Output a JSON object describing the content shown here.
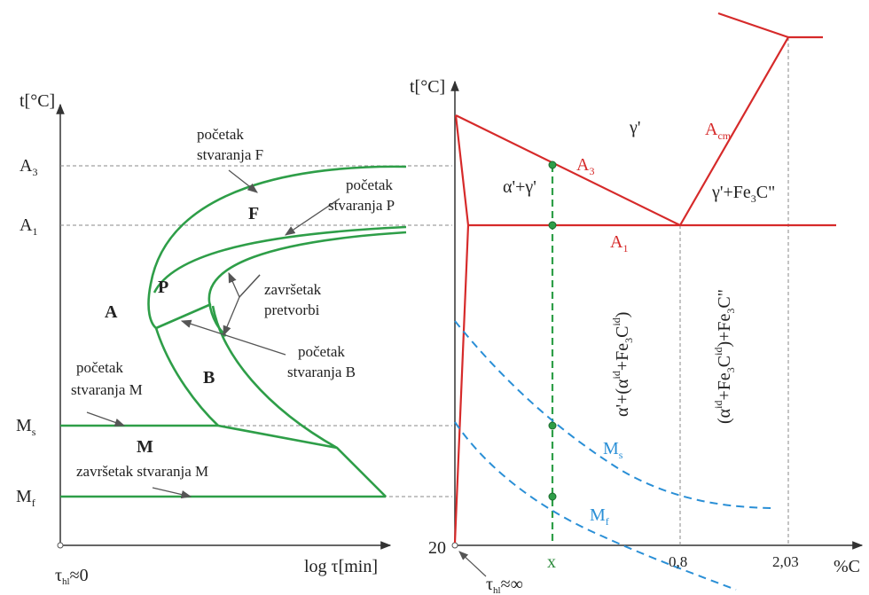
{
  "left": {
    "y_axis": "t[°C]",
    "x_axis": "log τ[min]",
    "origin": "τ",
    "origin_sub": "hl",
    "origin_suffix": "≈0",
    "ticks": {
      "a3": "A",
      "a3_sub": "3",
      "a1": "A",
      "a1_sub": "1",
      "ms": "M",
      "ms_sub": "s",
      "mf": "M",
      "mf_sub": "f"
    },
    "regions": {
      "A": "A",
      "F": "F",
      "P": "P",
      "B": "B",
      "M": "M"
    },
    "labels": {
      "pocetak_f_1": "početak",
      "pocetak_f_2": "stvaranja F",
      "pocetak_p_1": "početak",
      "pocetak_p_2": "stvaranja P",
      "zavrsetak_1": "završetak",
      "zavrsetak_2": "pretvorbi",
      "pocetak_b_1": "početak",
      "pocetak_b_2": "stvaranja B",
      "pocetak_m_1": "početak",
      "pocetak_m_2": "stvaranja M",
      "zavrsetak_m": "završetak stvaranja M"
    }
  },
  "right": {
    "y_axis": "t[°C]",
    "x_axis": "%C",
    "origin_value": "20",
    "origin": "τ",
    "origin_sub": "hl",
    "origin_suffix": "≈∞",
    "x_ticks": {
      "x": "x",
      "eutectoid": "0,8",
      "max": "2,03"
    },
    "labels": {
      "gamma": "γ'",
      "acm": "A",
      "acm_sub": "cm",
      "a3": "A",
      "a3_sub": "3",
      "a1": "A",
      "a1_sub": "1",
      "alpha_gamma": "α'+γ'",
      "gamma_fe3c_1": "γ'+Fe",
      "gamma_fe3c_sub": "3",
      "gamma_fe3c_2": "C\"",
      "ms": "M",
      "ms_sub": "s",
      "mf": "M",
      "mf_sub": "f",
      "vert_left": "α'+(α +Fe C )",
      "vert_left_parts": [
        "α'+(α",
        "id",
        "+Fe",
        "3",
        "C",
        "id",
        ")"
      ],
      "vert_right_parts": [
        "(α",
        "id",
        "+Fe",
        "3",
        "C",
        "id",
        ")+Fe",
        "3",
        "C\""
      ]
    }
  },
  "colors": {
    "green": "#2e9e48",
    "red": "#d62a2a",
    "blue": "#2a8fd6",
    "axis": "#333333",
    "dashed": "#777777"
  }
}
